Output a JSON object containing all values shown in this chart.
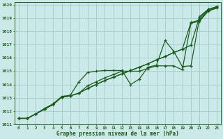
{
  "xlabel": "Graphe pression niveau de la mer (hPa)",
  "xlim": [
    -0.5,
    23.5
  ],
  "ylim": [
    1011.0,
    1020.2
  ],
  "yticks": [
    1011,
    1012,
    1013,
    1014,
    1015,
    1016,
    1017,
    1018,
    1019,
    1020
  ],
  "xticks": [
    0,
    1,
    2,
    3,
    4,
    5,
    6,
    7,
    8,
    9,
    10,
    11,
    12,
    13,
    14,
    15,
    16,
    17,
    18,
    19,
    20,
    21,
    22,
    23
  ],
  "background_color": "#cce9e9",
  "grid_color": "#aacfcf",
  "line_color": "#1a5c1a",
  "line_width": 0.9,
  "marker": "+",
  "marker_size": 3.5,
  "series": [
    [
      1011.45,
      1011.45,
      1011.8,
      1012.15,
      1012.5,
      1013.05,
      1013.15,
      1013.35,
      1013.7,
      1014.0,
      1014.3,
      1014.55,
      1014.8,
      1015.05,
      1015.3,
      1015.55,
      1015.85,
      1016.1,
      1016.4,
      1016.65,
      1016.95,
      1019.1,
      1019.65,
      1019.85
    ],
    [
      1011.45,
      1011.45,
      1011.8,
      1012.15,
      1012.5,
      1013.05,
      1013.15,
      1013.35,
      1013.7,
      1014.0,
      1014.3,
      1014.55,
      1014.8,
      1015.05,
      1015.3,
      1015.55,
      1015.85,
      1016.1,
      1016.4,
      1016.65,
      1018.65,
      1018.85,
      1019.55,
      1019.75
    ],
    [
      1011.45,
      1011.45,
      1011.8,
      1012.15,
      1012.5,
      1013.05,
      1013.15,
      1013.35,
      1013.9,
      1014.2,
      1014.5,
      1014.75,
      1015.0,
      1015.0,
      1015.0,
      1015.2,
      1015.4,
      1015.4,
      1015.4,
      1015.1,
      1018.6,
      1018.75,
      1019.5,
      1019.75
    ],
    [
      1011.45,
      1011.45,
      1011.8,
      1012.2,
      1012.55,
      1013.1,
      1013.2,
      1014.2,
      1014.9,
      1015.0,
      1015.05,
      1015.05,
      1015.05,
      1014.0,
      1014.4,
      1015.3,
      1015.45,
      1017.3,
      1016.5,
      1015.35,
      1015.4,
      1019.0,
      1019.6,
      1019.8
    ]
  ]
}
